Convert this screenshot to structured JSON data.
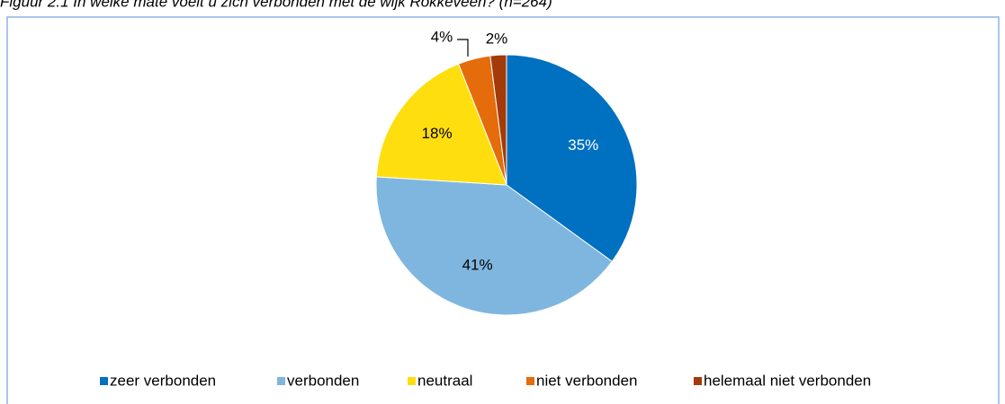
{
  "chart_data": {
    "type": "pie",
    "title": "Figuur 2.1 In welke mate voelt u zich verbonden met de wijk Rokkeveen? (n=264)",
    "categories": [
      "zeer verbonden",
      "verbonden",
      "neutraal",
      "niet verbonden",
      "helemaal niet verbonden"
    ],
    "values": [
      35,
      41,
      18,
      4,
      2
    ],
    "value_labels": [
      "35%",
      "41%",
      "18%",
      "4%",
      "2%"
    ],
    "colors": [
      "#0070c0",
      "#7fb6df",
      "#ffde0f",
      "#e46c0a",
      "#a33a0a"
    ],
    "legend": "bottom"
  }
}
